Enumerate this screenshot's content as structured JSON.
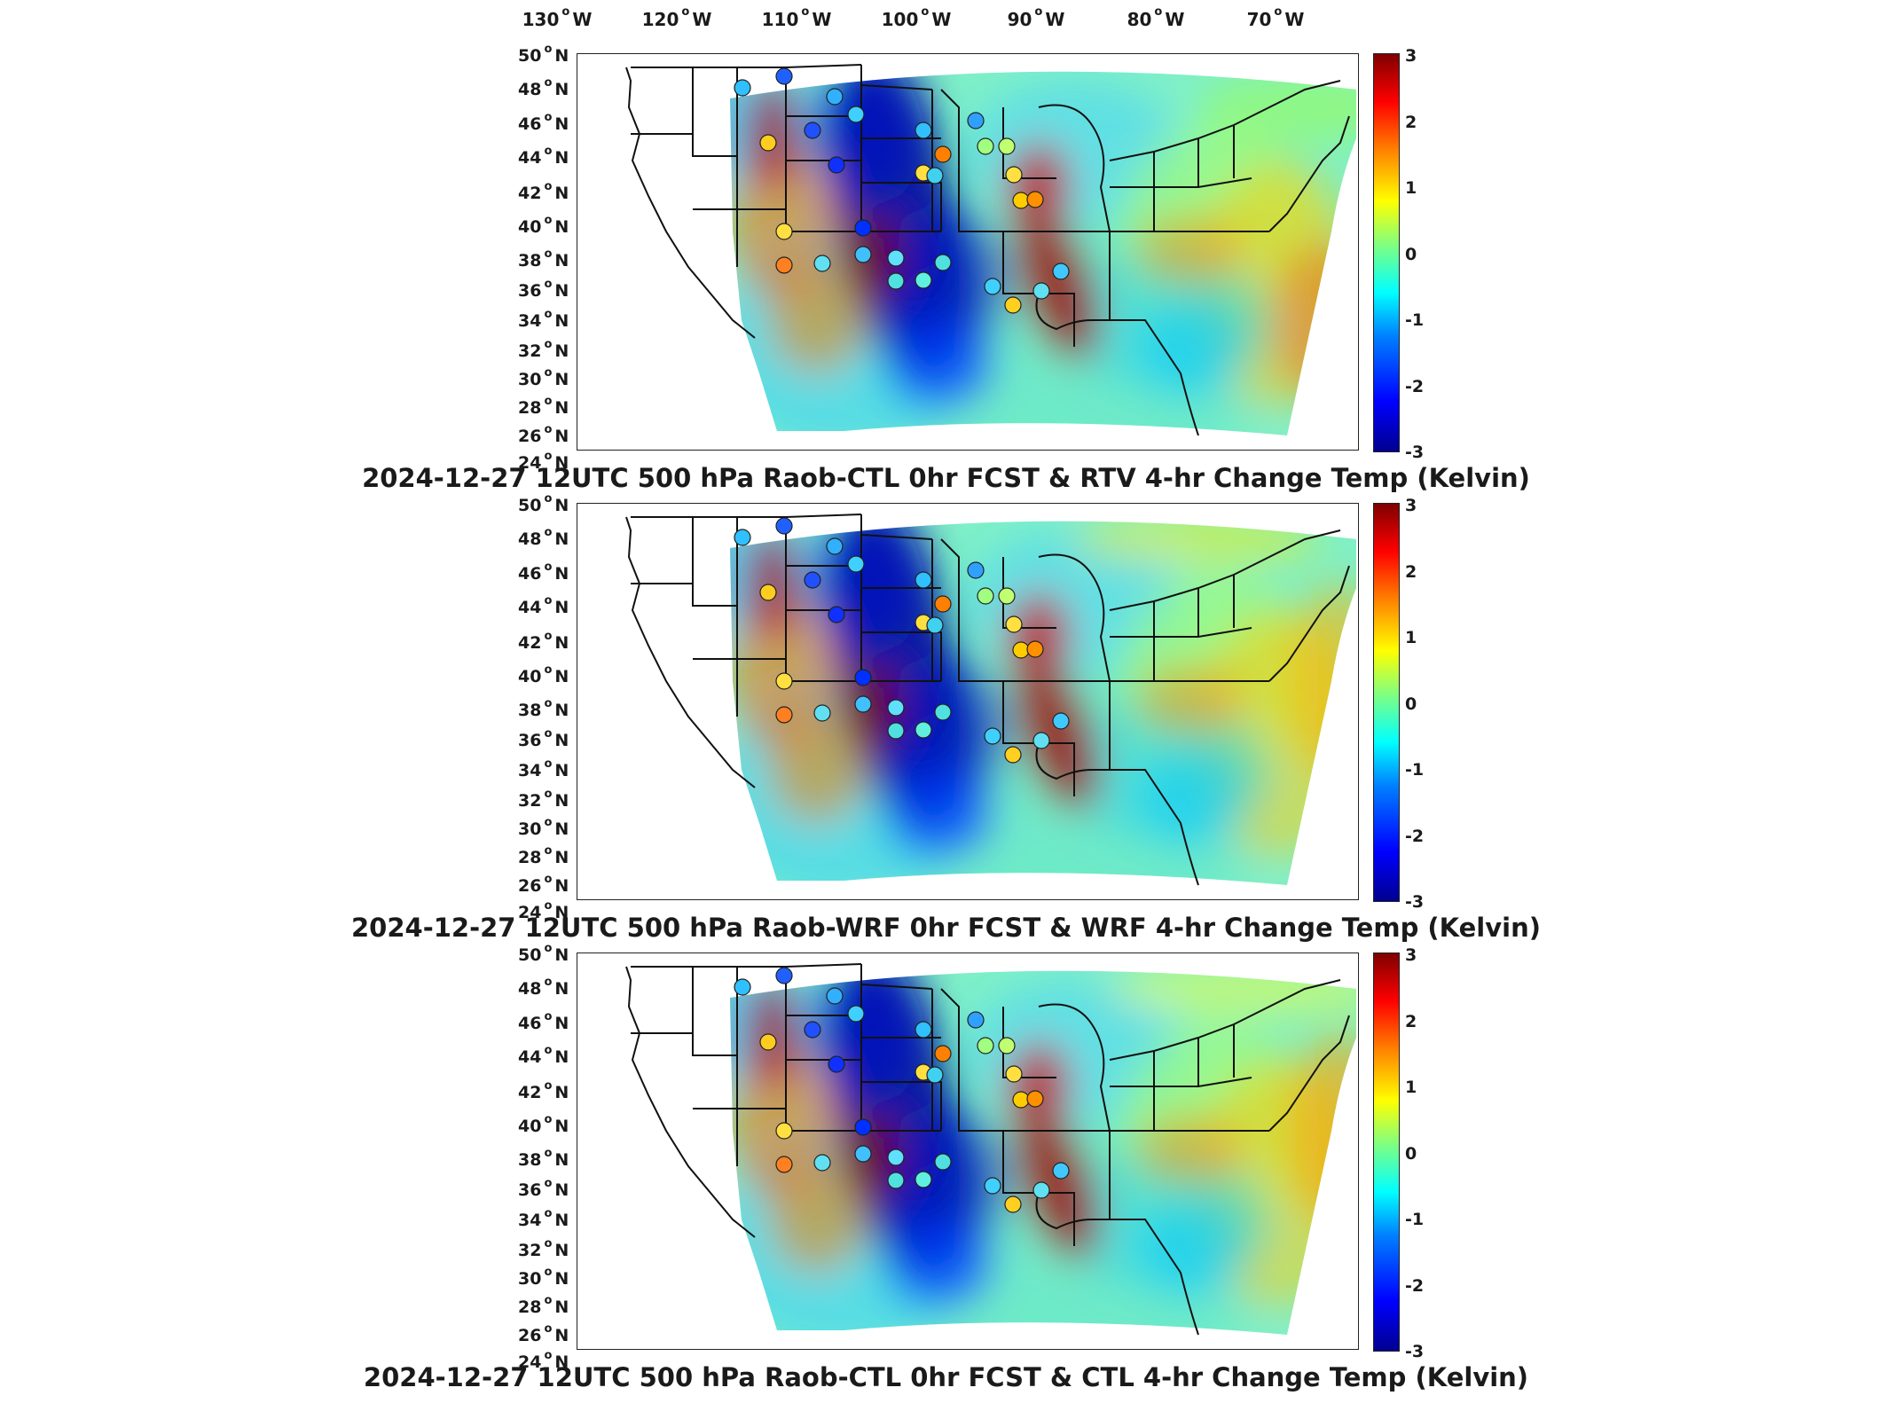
{
  "longitude_labels": [
    {
      "deg": "130",
      "hem": "W"
    },
    {
      "deg": "120",
      "hem": "W"
    },
    {
      "deg": "110",
      "hem": "W"
    },
    {
      "deg": "100",
      "hem": "W"
    },
    {
      "deg": "90",
      "hem": "W"
    },
    {
      "deg": "80",
      "hem": "W"
    },
    {
      "deg": "70",
      "hem": "W"
    }
  ],
  "latitude_labels": [
    {
      "deg": "50",
      "hem": "N"
    },
    {
      "deg": "48",
      "hem": "N"
    },
    {
      "deg": "46",
      "hem": "N"
    },
    {
      "deg": "44",
      "hem": "N"
    },
    {
      "deg": "42",
      "hem": "N"
    },
    {
      "deg": "40",
      "hem": "N"
    },
    {
      "deg": "38",
      "hem": "N"
    },
    {
      "deg": "36",
      "hem": "N"
    },
    {
      "deg": "34",
      "hem": "N"
    },
    {
      "deg": "32",
      "hem": "N"
    },
    {
      "deg": "30",
      "hem": "N"
    },
    {
      "deg": "28",
      "hem": "N"
    },
    {
      "deg": "26",
      "hem": "N"
    },
    {
      "deg": "24",
      "hem": "N"
    }
  ],
  "colorbar": {
    "ticks": [
      "3",
      "2",
      "1",
      "0",
      "-1",
      "-2",
      "-3"
    ],
    "range": [
      -3,
      3
    ],
    "colormap": "jet",
    "colors": {
      "low": "#00008f",
      "mid": "#80ff80",
      "high": "#800000"
    }
  },
  "panels": [
    {
      "title": "2024-12-27 12UTC 500 hPa Raob-CTL 0hr FCST & RTV 4-hr Change Temp (Kelvin)"
    },
    {
      "title": "2024-12-27 12UTC 500 hPa Raob-WRF 0hr FCST & WRF 4-hr Change Temp (Kelvin)"
    },
    {
      "title": "2024-12-27 12UTC 500 hPa Raob-CTL 0hr FCST & CTL 4-hr Change Temp (Kelvin)"
    }
  ]
}
